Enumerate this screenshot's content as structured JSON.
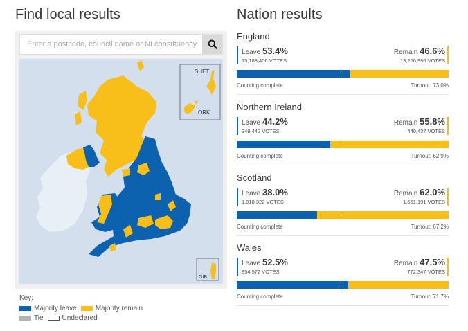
{
  "local": {
    "title": "Find local results",
    "search": {
      "placeholder": "Enter a postcode, council name or NI constituency",
      "value": "",
      "button_icon": "search-icon"
    },
    "map": {
      "insets": [
        {
          "label": "SHET",
          "region": "Shetland"
        },
        {
          "label": "ORK",
          "region": "Orkney"
        },
        {
          "label": "GIB",
          "region": "Gibraltar"
        }
      ]
    },
    "key": {
      "title": "Key:",
      "items": [
        {
          "label": "Majority leave",
          "color": "#0d62b0"
        },
        {
          "label": "Majority remain",
          "color": "#f8bf1a"
        },
        {
          "label": "Tie",
          "color": "#b3b3b3"
        },
        {
          "label": "Undeclared",
          "color": "#ffffff"
        }
      ]
    }
  },
  "nations": {
    "title": "Nation results",
    "items": [
      {
        "name": "England",
        "leave_label": "Leave",
        "leave_pct": "53.4%",
        "leave_votes": "15,188,406 VOTES",
        "leave_value": 53.4,
        "remain_label": "Remain",
        "remain_pct": "46.6%",
        "remain_votes": "13,266,996 VOTES",
        "status": "Counting complete",
        "turnout": "Turnout: 73.0%"
      },
      {
        "name": "Northern Ireland",
        "leave_label": "Leave",
        "leave_pct": "44.2%",
        "leave_votes": "349,442 VOTES",
        "leave_value": 44.2,
        "remain_label": "Remain",
        "remain_pct": "55.8%",
        "remain_votes": "440,437 VOTES",
        "status": "Counting complete",
        "turnout": "Turnout: 62.9%"
      },
      {
        "name": "Scotland",
        "leave_label": "Leave",
        "leave_pct": "38.0%",
        "leave_votes": "1,018,322 VOTES",
        "leave_value": 38.0,
        "remain_label": "Remain",
        "remain_pct": "62.0%",
        "remain_votes": "1,661,191 VOTES",
        "status": "Counting complete",
        "turnout": "Turnout: 67.2%"
      },
      {
        "name": "Wales",
        "leave_label": "Leave",
        "leave_pct": "52.5%",
        "leave_votes": "854,572 VOTES",
        "leave_value": 52.5,
        "remain_label": "Remain",
        "remain_pct": "47.5%",
        "remain_votes": "772,347 VOTES",
        "status": "Counting complete",
        "turnout": "Turnout: 71.7%"
      }
    ]
  },
  "colors": {
    "leave": "#0d62b0",
    "remain": "#f8bf1a",
    "tie": "#b3b3b3",
    "sea": "#d3dfec",
    "ireland": "#e8eff6"
  }
}
